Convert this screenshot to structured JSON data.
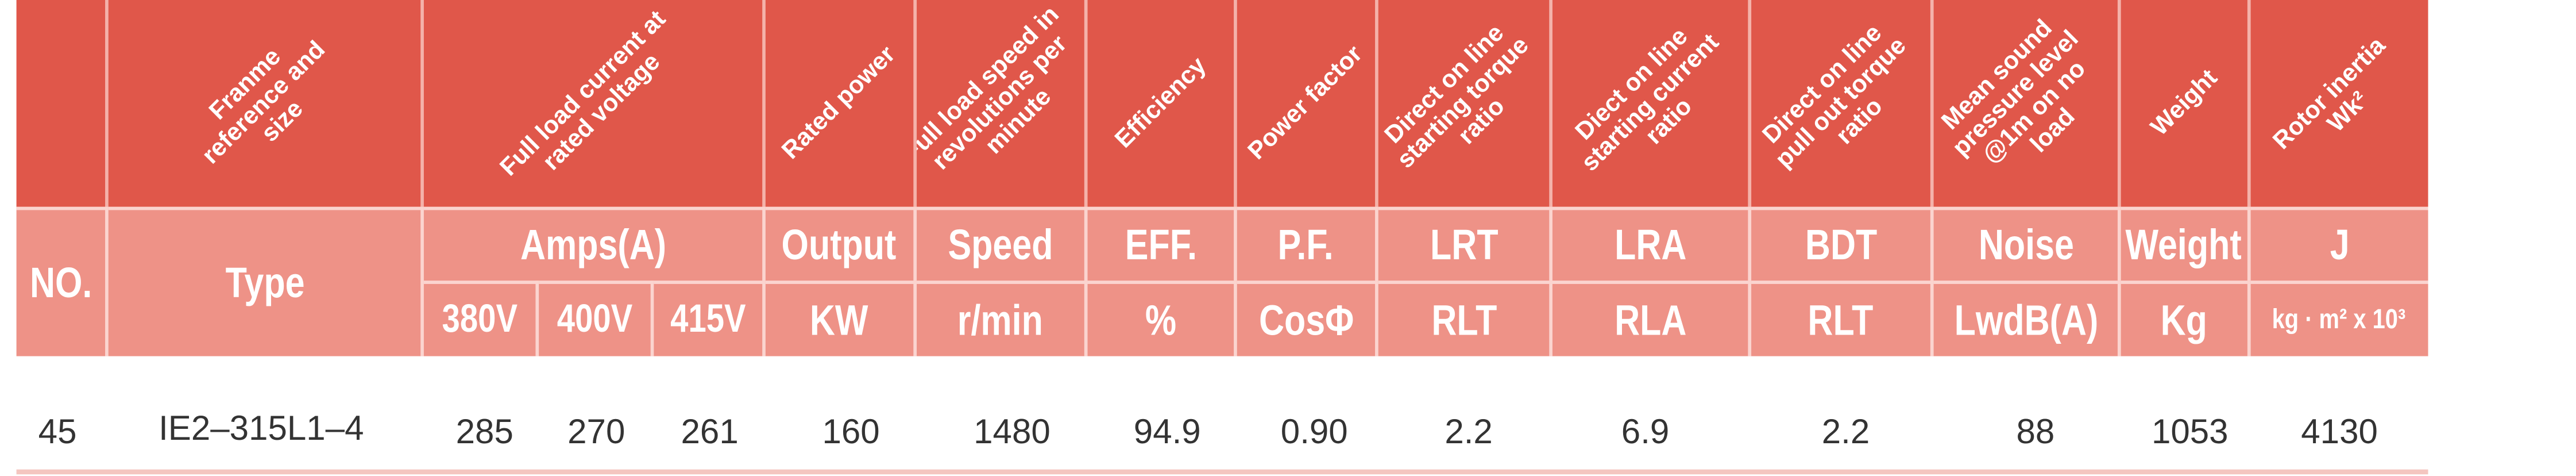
{
  "header_labels": {
    "frame": "Franme reference and size",
    "current": "Full load current at rated voltage",
    "power": "Rated power",
    "speed": "Full load speed in revolutions per minute",
    "efficiency": "Efficiency",
    "pf": "Power factor",
    "lrt": "Direct on line starting torque ratio",
    "lra": "Diect on line starting current ratio",
    "bdt": "Direct on line pull out torque ratio",
    "noise": "Mean sound pressure level @1m on no load",
    "weight": "Weight",
    "inertia": "Rotor inertia Wk²"
  },
  "sub_headers": {
    "no": "NO.",
    "type": "Type",
    "amps": "Amps(A)",
    "v380": "380V",
    "v400": "400V",
    "v415": "415V",
    "output": "Output",
    "output_unit": "KW",
    "speed": "Speed",
    "speed_unit": "r/min",
    "eff": "EFF.",
    "eff_unit": "%",
    "pf": "P.F.",
    "pf_unit": "CosΦ",
    "lrt": "LRT",
    "lrt_unit": "RLT",
    "lra": "LRA",
    "lra_unit": "RLA",
    "bdt": "BDT",
    "bdt_unit": "RLT",
    "noise": "Noise",
    "noise_unit": "LwdB(A)",
    "weight": "Weight",
    "weight_unit": "Kg",
    "j": "J",
    "j_unit": "kg · m² x 10³"
  },
  "row": {
    "no": "45",
    "type": "IE2–315L1–4",
    "a380": "285",
    "a400": "270",
    "a415": "261",
    "kw": "160",
    "rpm": "1480",
    "eff": "94.9",
    "pf": "0.90",
    "lrt": "2.2",
    "lra": "6.9",
    "bdt": "2.2",
    "noise": "88",
    "weight": "1053",
    "j": "4130"
  },
  "colors": {
    "header_red": "#e0574a",
    "subheader_pink": "#ee9287",
    "text_gray": "#333333"
  }
}
